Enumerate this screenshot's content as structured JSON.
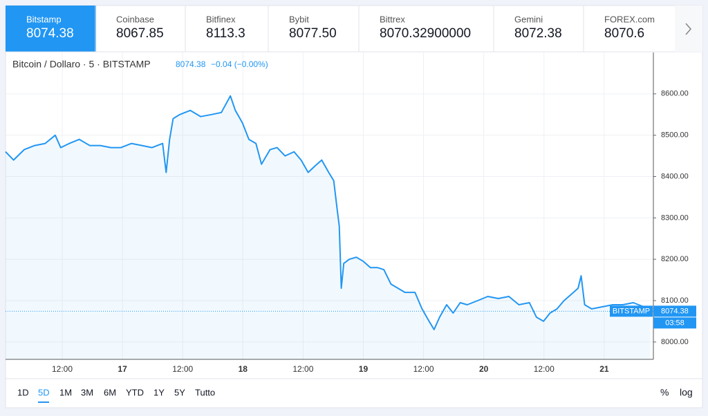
{
  "tabs": [
    {
      "name": "Bitstamp",
      "price": "8074.38"
    },
    {
      "name": "Coinbase",
      "price": "8067.85"
    },
    {
      "name": "Bitfinex",
      "price": "8113.3"
    },
    {
      "name": "Bybit",
      "price": "8077.50"
    },
    {
      "name": "Bittrex",
      "price": "8070.32900000"
    },
    {
      "name": "Gemini",
      "price": "8072.38"
    },
    {
      "name": "FOREX.com",
      "price": "8070.6"
    }
  ],
  "chart_data": {
    "type": "line",
    "title": "Bitcoin / Dollaro · 5 · BITSTAMP",
    "legend_price": "8074.38",
    "legend_change": "−0.04 (−0.00%)",
    "color": "#2196f3",
    "x": [
      0.7,
      2.3,
      4.4,
      6.5,
      8.6,
      10.6,
      11.7,
      13.4,
      15.4,
      17.5,
      19.6,
      21.7,
      23.7,
      25.8,
      27.9,
      29.9,
      32.0,
      32.7,
      33.4,
      34.1,
      35.4,
      37.5,
      39.6,
      41.7,
      43.7,
      45.5,
      46.5,
      47.9,
      49.2,
      50.6,
      51.7,
      53.4,
      54.8,
      56.4,
      58.2,
      59.6,
      61.0,
      62.3,
      63.7,
      65.1,
      66.1,
      66.8,
      67.2,
      67.6,
      68.1,
      69.2,
      70.6,
      72.0,
      73.4,
      74.8,
      76.1,
      77.5,
      78.9,
      80.3,
      82.3,
      83.7,
      85.1,
      86.1,
      87.2,
      88.6,
      89.9,
      91.3,
      92.7,
      94.8,
      96.8,
      98.9,
      101.0,
      103.0,
      105.1,
      106.5,
      107.9,
      109.2,
      110.6,
      112.0,
      113.4,
      114.8,
      115.4,
      116.1,
      117.5,
      119.6,
      121.7,
      123.7,
      125.8,
      127.9,
      129.2
    ],
    "values": [
      8460,
      8440,
      8465,
      8475,
      8480,
      8500,
      8470,
      8480,
      8490,
      8475,
      8475,
      8470,
      8470,
      8480,
      8475,
      8470,
      8480,
      8410,
      8490,
      8540,
      8550,
      8560,
      8545,
      8550,
      8555,
      8595,
      8560,
      8530,
      8490,
      8480,
      8430,
      8465,
      8470,
      8450,
      8460,
      8440,
      8410,
      8425,
      8440,
      8410,
      8390,
      8320,
      8280,
      8130,
      8190,
      8200,
      8205,
      8195,
      8180,
      8180,
      8175,
      8140,
      8130,
      8120,
      8120,
      8080,
      8050,
      8030,
      8060,
      8090,
      8070,
      8095,
      8090,
      8100,
      8110,
      8105,
      8110,
      8090,
      8095,
      8060,
      8050,
      8070,
      8080,
      8100,
      8115,
      8130,
      8160,
      8090,
      8080,
      8085,
      8090,
      8090,
      8095,
      8085,
      8074.38
    ],
    "xlim": [
      0.7,
      129.8
    ],
    "ylim": [
      7958,
      8700
    ],
    "xticks": [
      {
        "value": 12,
        "label": "12:00"
      },
      {
        "value": 24,
        "label": "17"
      },
      {
        "value": 36,
        "label": "12:00"
      },
      {
        "value": 48,
        "label": "18"
      },
      {
        "value": 60,
        "label": "12:00"
      },
      {
        "value": 72,
        "label": "19"
      },
      {
        "value": 84,
        "label": "12:00"
      },
      {
        "value": 96,
        "label": "20"
      },
      {
        "value": 108,
        "label": "12:00"
      },
      {
        "value": 120,
        "label": "21"
      }
    ],
    "yticks": [
      {
        "value": 8000,
        "label": "8000.00"
      },
      {
        "value": 8100,
        "label": "8100.00"
      },
      {
        "value": 8200,
        "label": "8200.00"
      },
      {
        "value": 8300,
        "label": "8300.00"
      },
      {
        "value": 8400,
        "label": "8400.00"
      },
      {
        "value": 8500,
        "label": "8500.00"
      },
      {
        "value": 8600,
        "label": "8600.00"
      }
    ],
    "last": {
      "value": 8074.38,
      "label": "8074.38",
      "name": "BITSTAMP",
      "countdown": "03:58"
    },
    "grid": true
  },
  "ranges": [
    "1D",
    "5D",
    "1M",
    "3M",
    "6M",
    "YTD",
    "1Y",
    "5Y",
    "Tutto"
  ],
  "active_range": 1,
  "toggles": [
    "%",
    "log"
  ]
}
